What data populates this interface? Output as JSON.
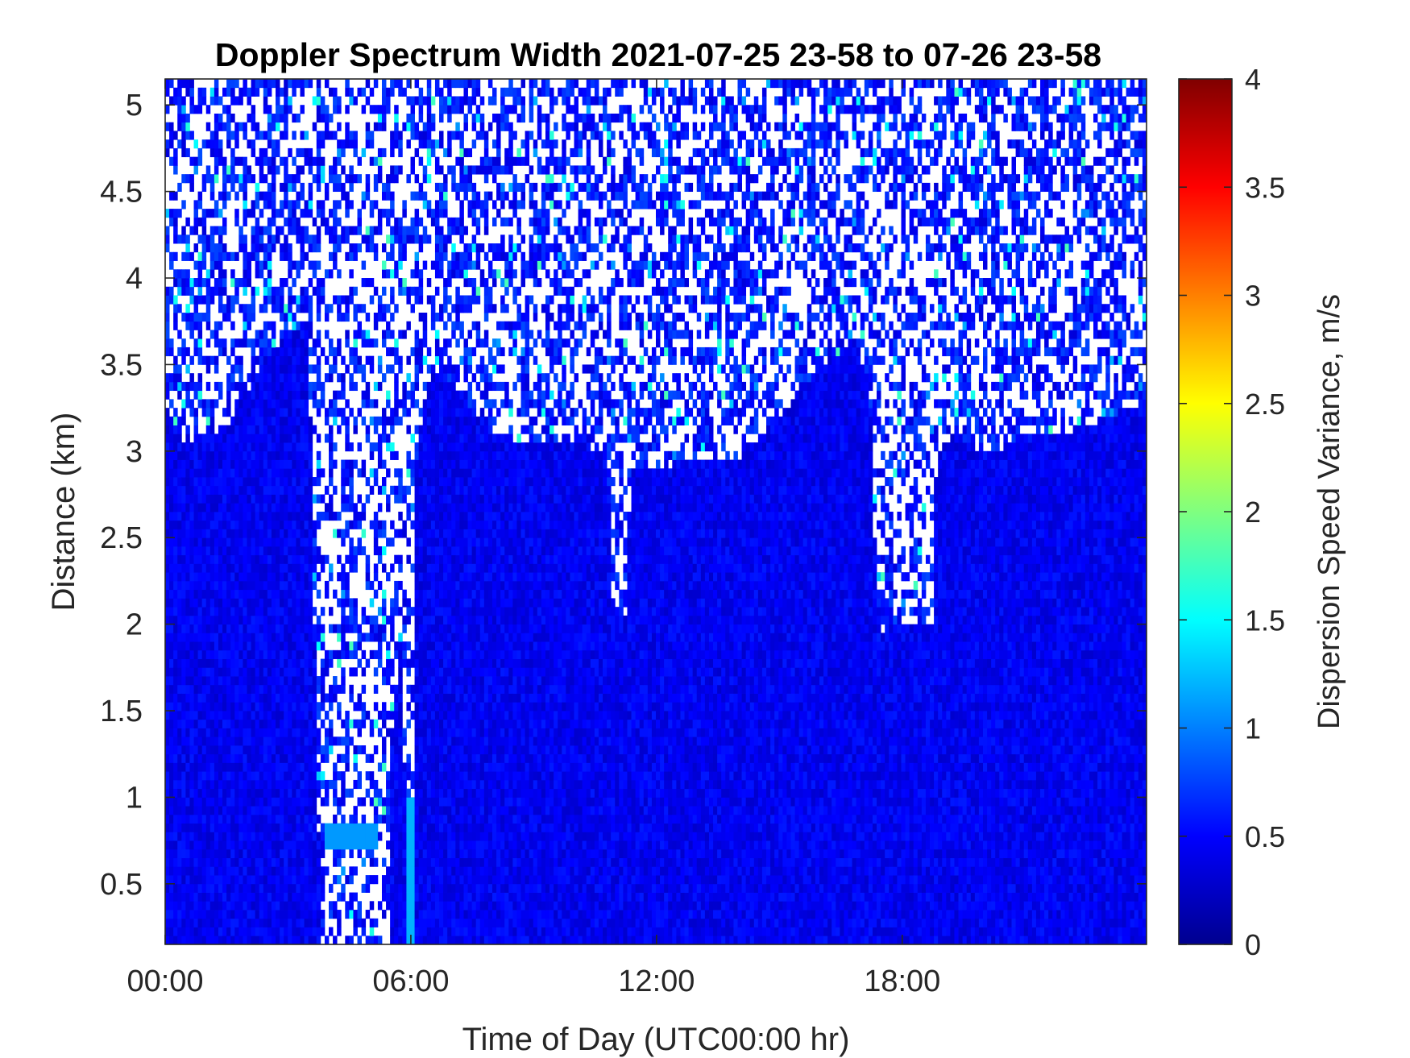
{
  "chart_data": {
    "type": "heatmap",
    "title": "Doppler Spectrum Width 2021-07-25 23-58 to 07-26 23-58",
    "xlabel": "Time of Day (UTC00:00 hr)",
    "ylabel": "Distance (km)",
    "colorbar_label": "Dispersion Speed Variance, m/s",
    "colormap": "jet",
    "x_range_hours": [
      0,
      23.9667
    ],
    "y_range_km": [
      0.15,
      5.15
    ],
    "clim": [
      0,
      4
    ],
    "x_ticks": [
      {
        "value": 0,
        "label": "00:00"
      },
      {
        "value": 6,
        "label": "06:00"
      },
      {
        "value": 12,
        "label": "12:00"
      },
      {
        "value": 18,
        "label": "18:00"
      }
    ],
    "y_ticks": [
      {
        "value": 0.5,
        "label": "0.5"
      },
      {
        "value": 1,
        "label": "1"
      },
      {
        "value": 1.5,
        "label": "1.5"
      },
      {
        "value": 2,
        "label": "2"
      },
      {
        "value": 2.5,
        "label": "2.5"
      },
      {
        "value": 3,
        "label": "3"
      },
      {
        "value": 3.5,
        "label": "3.5"
      },
      {
        "value": 4,
        "label": "4"
      },
      {
        "value": 4.5,
        "label": "4.5"
      },
      {
        "value": 5,
        "label": "5"
      }
    ],
    "colorbar_ticks": [
      {
        "value": 0,
        "label": "0"
      },
      {
        "value": 0.5,
        "label": "0.5"
      },
      {
        "value": 1,
        "label": "1"
      },
      {
        "value": 1.5,
        "label": "1.5"
      },
      {
        "value": 2,
        "label": "2"
      },
      {
        "value": 2.5,
        "label": "2.5"
      },
      {
        "value": 3,
        "label": "3"
      },
      {
        "value": 3.5,
        "label": "3.5"
      },
      {
        "value": 4,
        "label": "4"
      }
    ],
    "signal_top_km": [
      [
        0,
        3.25
      ],
      [
        0.5,
        3.05
      ],
      [
        1.0,
        3.1
      ],
      [
        1.5,
        3.15
      ],
      [
        2.0,
        3.35
      ],
      [
        2.5,
        3.55
      ],
      [
        3.0,
        3.7
      ],
      [
        3.5,
        3.75
      ],
      [
        3.8,
        0.15
      ],
      [
        4.9,
        0.15
      ],
      [
        5.4,
        1.0
      ],
      [
        5.7,
        1.8
      ],
      [
        6.2,
        3.1
      ],
      [
        6.5,
        3.5
      ],
      [
        7.0,
        3.4
      ],
      [
        8.0,
        3.1
      ],
      [
        9.0,
        3.05
      ],
      [
        10.0,
        3.05
      ],
      [
        10.8,
        3.0
      ],
      [
        10.95,
        2.0
      ],
      [
        11.2,
        2.1
      ],
      [
        11.4,
        2.9
      ],
      [
        12.0,
        2.9
      ],
      [
        13.0,
        2.95
      ],
      [
        14.0,
        2.95
      ],
      [
        15.0,
        3.2
      ],
      [
        16.0,
        3.5
      ],
      [
        16.8,
        3.6
      ],
      [
        17.2,
        3.4
      ],
      [
        17.4,
        1.9
      ],
      [
        17.7,
        2.0
      ],
      [
        18.0,
        2.1
      ],
      [
        18.3,
        2.2
      ],
      [
        18.6,
        2.4
      ],
      [
        18.9,
        3.0
      ],
      [
        19.2,
        3.1
      ],
      [
        20.0,
        3.0
      ],
      [
        21.0,
        3.05
      ],
      [
        22.0,
        3.1
      ],
      [
        23.0,
        3.2
      ],
      [
        23.97,
        3.3
      ]
    ],
    "gap_intervals": [
      {
        "x0": 3.8,
        "x1": 5.5,
        "y0": 0.15,
        "y1": 5.15
      },
      {
        "x0": 5.75,
        "x1": 6.1,
        "y0": 1.0,
        "y1": 5.15
      },
      {
        "x0": 10.9,
        "x1": 11.25,
        "y0": 2.05,
        "y1": 5.15
      },
      {
        "x0": 17.4,
        "x1": 18.8,
        "y0": 2.0,
        "y1": 5.15
      }
    ],
    "typical_values": {
      "dense_region": 0.45,
      "bright_column_near_06": 1.2,
      "patch_near_0.8km_05hr": 1.1
    }
  }
}
